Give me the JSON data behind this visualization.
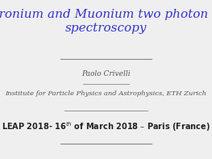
{
  "title_line1": "Positronium and Muonium two photon laser",
  "title_line2": "spectroscopy",
  "title_color": "#3333cc",
  "author": "Paolo Crivelli",
  "author_color": "#555555",
  "institute": "Institute for Particle Physics and Astrophysics, ETH Zurich",
  "institute_color": "#555555",
  "date_line": "LEAP 2018- 16$^{th}$ of March 2018 – Paris (France)",
  "date_color": "#222222",
  "bg_color": "#efefef",
  "line_color": "#888888",
  "title_fontsize": 11.0,
  "author_fontsize": 6.5,
  "institute_fontsize": 6.0,
  "date_fontsize": 7.0
}
